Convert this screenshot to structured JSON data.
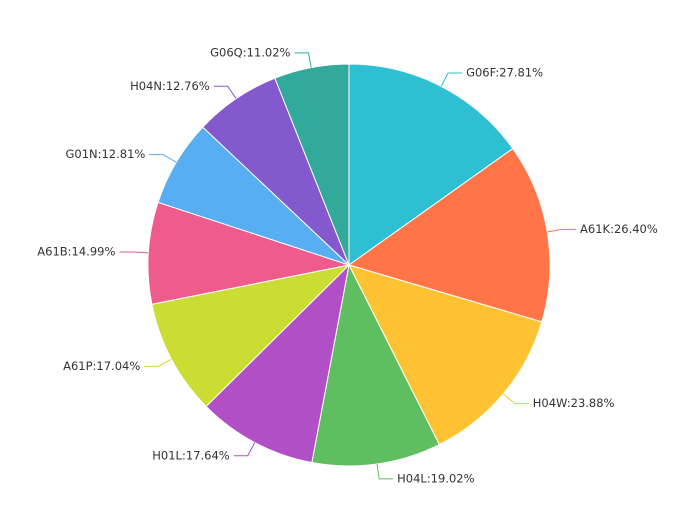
{
  "chart_data": {
    "type": "pie",
    "values": [
      27.81,
      26.4,
      23.88,
      19.02,
      17.64,
      17.04,
      14.99,
      12.81,
      12.76,
      11.02
    ],
    "value_labels": [
      "G06F:27.81%",
      "A61K:26.40%",
      "H04W:23.88%",
      "H04L:19.02%",
      "H01L:17.64%",
      "A61P:17.04%",
      "A61B:14.99%",
      "G01N:12.81%",
      "H04N:12.76%",
      "G06Q:11.02%"
    ],
    "colors": [
      "#2ebfd2",
      "#ff7548",
      "#ffc233",
      "#5fbe60",
      "#b14fc6",
      "#cbdc33",
      "#f05b8d",
      "#58aef2",
      "#8459cd",
      "#31a99b"
    ]
  }
}
